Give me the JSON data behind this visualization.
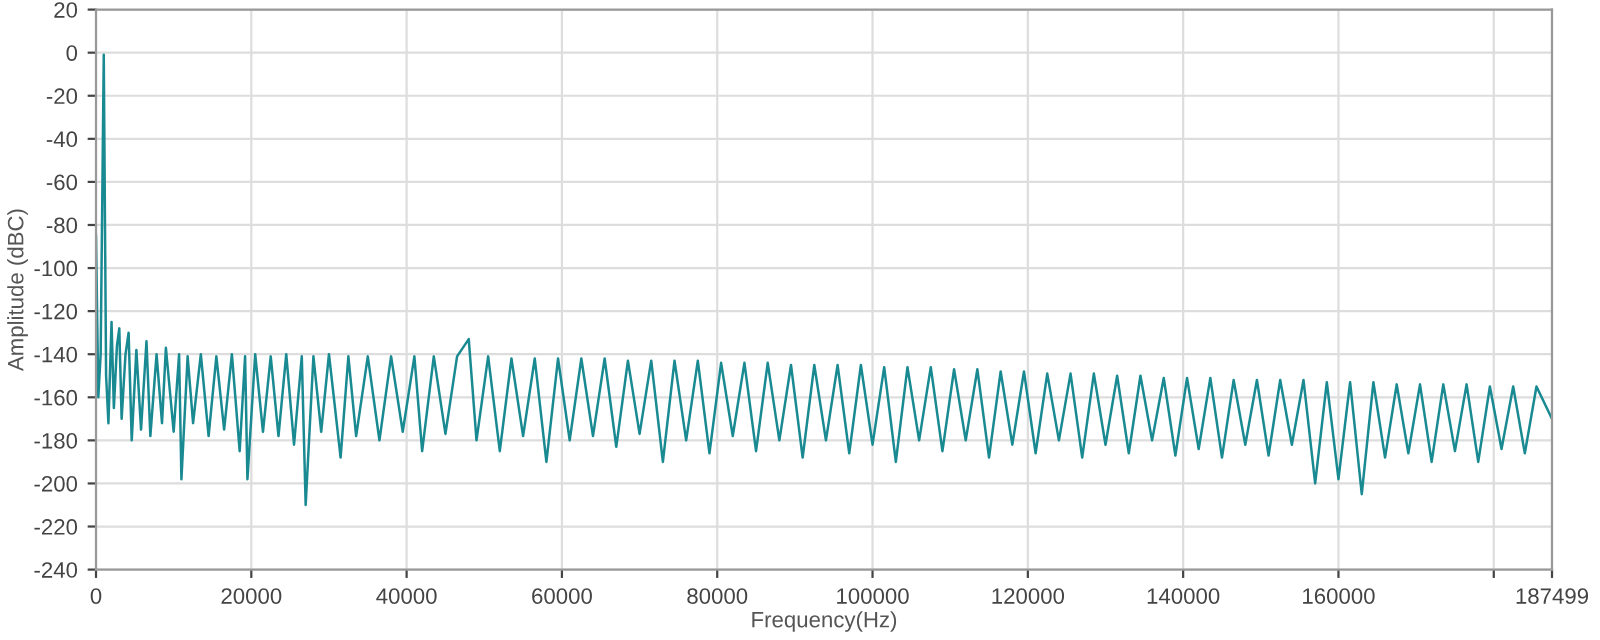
{
  "chart_data": {
    "type": "line",
    "xlabel": "Frequency(Hz)",
    "ylabel": "Amplitude (dBC)",
    "xlim": [
      0,
      187499
    ],
    "ylim": [
      -240,
      20
    ],
    "xticks": [
      0,
      20000,
      40000,
      60000,
      80000,
      100000,
      120000,
      140000,
      160000,
      {
        "value": 180000,
        "label": null
      },
      187499
    ],
    "yticks": [
      -240,
      -220,
      -200,
      -180,
      -160,
      -140,
      -120,
      -100,
      -80,
      -60,
      -40,
      -20,
      0,
      20
    ],
    "grid": true,
    "marker": "none",
    "line_style": "solid",
    "series": [
      {
        "color": "#1a8a92",
        "x": [
          0,
          300,
          600,
          1000,
          1300,
          1600,
          2000,
          2300,
          2700,
          3000,
          3300,
          3800,
          4200,
          4600,
          5200,
          5800,
          6500,
          7000,
          7800,
          8500,
          9000,
          10000,
          10700,
          11000,
          11800,
          12500,
          13500,
          14500,
          15500,
          16500,
          17500,
          18500,
          19200,
          19500,
          20500,
          21500,
          22500,
          23500,
          24500,
          25500,
          26500,
          27000,
          28000,
          29000,
          30000,
          31500,
          32500,
          33500,
          35000,
          36500,
          38000,
          39500,
          41000,
          42000,
          43500,
          45000,
          46500,
          48000,
          49000,
          50500,
          52000,
          53500,
          55000,
          56500,
          58000,
          59500,
          61000,
          62500,
          64000,
          65500,
          67000,
          68500,
          70000,
          71500,
          73000,
          74500,
          76000,
          77500,
          79000,
          80500,
          82000,
          83500,
          85000,
          86500,
          88000,
          89500,
          91000,
          92500,
          94000,
          95500,
          97000,
          98500,
          100000,
          101500,
          103000,
          104500,
          106000,
          107500,
          109000,
          110500,
          112000,
          113500,
          115000,
          116500,
          118000,
          119500,
          121000,
          122500,
          124000,
          125500,
          127000,
          128500,
          130000,
          131500,
          133000,
          134500,
          136000,
          137500,
          139000,
          140500,
          142000,
          143500,
          145000,
          146500,
          148000,
          149500,
          151000,
          152500,
          154000,
          155500,
          157000,
          158500,
          160000,
          161500,
          163000,
          164500,
          166000,
          167500,
          169000,
          170500,
          172000,
          173500,
          175000,
          176500,
          178000,
          179500,
          181000,
          182500,
          184000,
          185500,
          187499
        ],
        "values": [
          -85,
          -160,
          -140,
          -1,
          -150,
          -172,
          -125,
          -165,
          -136,
          -128,
          -170,
          -140,
          -130,
          -180,
          -138,
          -175,
          -134,
          -178,
          -140,
          -172,
          -137,
          -176,
          -140,
          -198,
          -141,
          -172,
          -140,
          -178,
          -141,
          -175,
          -140,
          -185,
          -141,
          -198,
          -140,
          -176,
          -141,
          -178,
          -140,
          -182,
          -141,
          -210,
          -141,
          -176,
          -140,
          -188,
          -141,
          -178,
          -141,
          -180,
          -141,
          -176,
          -141,
          -185,
          -141,
          -177,
          -141,
          -133,
          -180,
          -141,
          -185,
          -142,
          -178,
          -142,
          -190,
          -142,
          -180,
          -142,
          -178,
          -142,
          -183,
          -143,
          -177,
          -143,
          -190,
          -143,
          -180,
          -143,
          -186,
          -144,
          -178,
          -144,
          -185,
          -144,
          -180,
          -145,
          -188,
          -145,
          -180,
          -145,
          -186,
          -145,
          -182,
          -146,
          -190,
          -146,
          -180,
          -146,
          -185,
          -147,
          -180,
          -147,
          -188,
          -148,
          -182,
          -148,
          -186,
          -149,
          -180,
          -149,
          -188,
          -149,
          -182,
          -150,
          -186,
          -150,
          -180,
          -151,
          -187,
          -151,
          -184,
          -151,
          -188,
          -152,
          -182,
          -152,
          -187,
          -152,
          -182,
          -152,
          -200,
          -153,
          -198,
          -153,
          -205,
          -153,
          -188,
          -154,
          -186,
          -154,
          -190,
          -154,
          -185,
          -154,
          -190,
          -155,
          -184,
          -155,
          -186,
          -155,
          -170
        ]
      }
    ]
  }
}
